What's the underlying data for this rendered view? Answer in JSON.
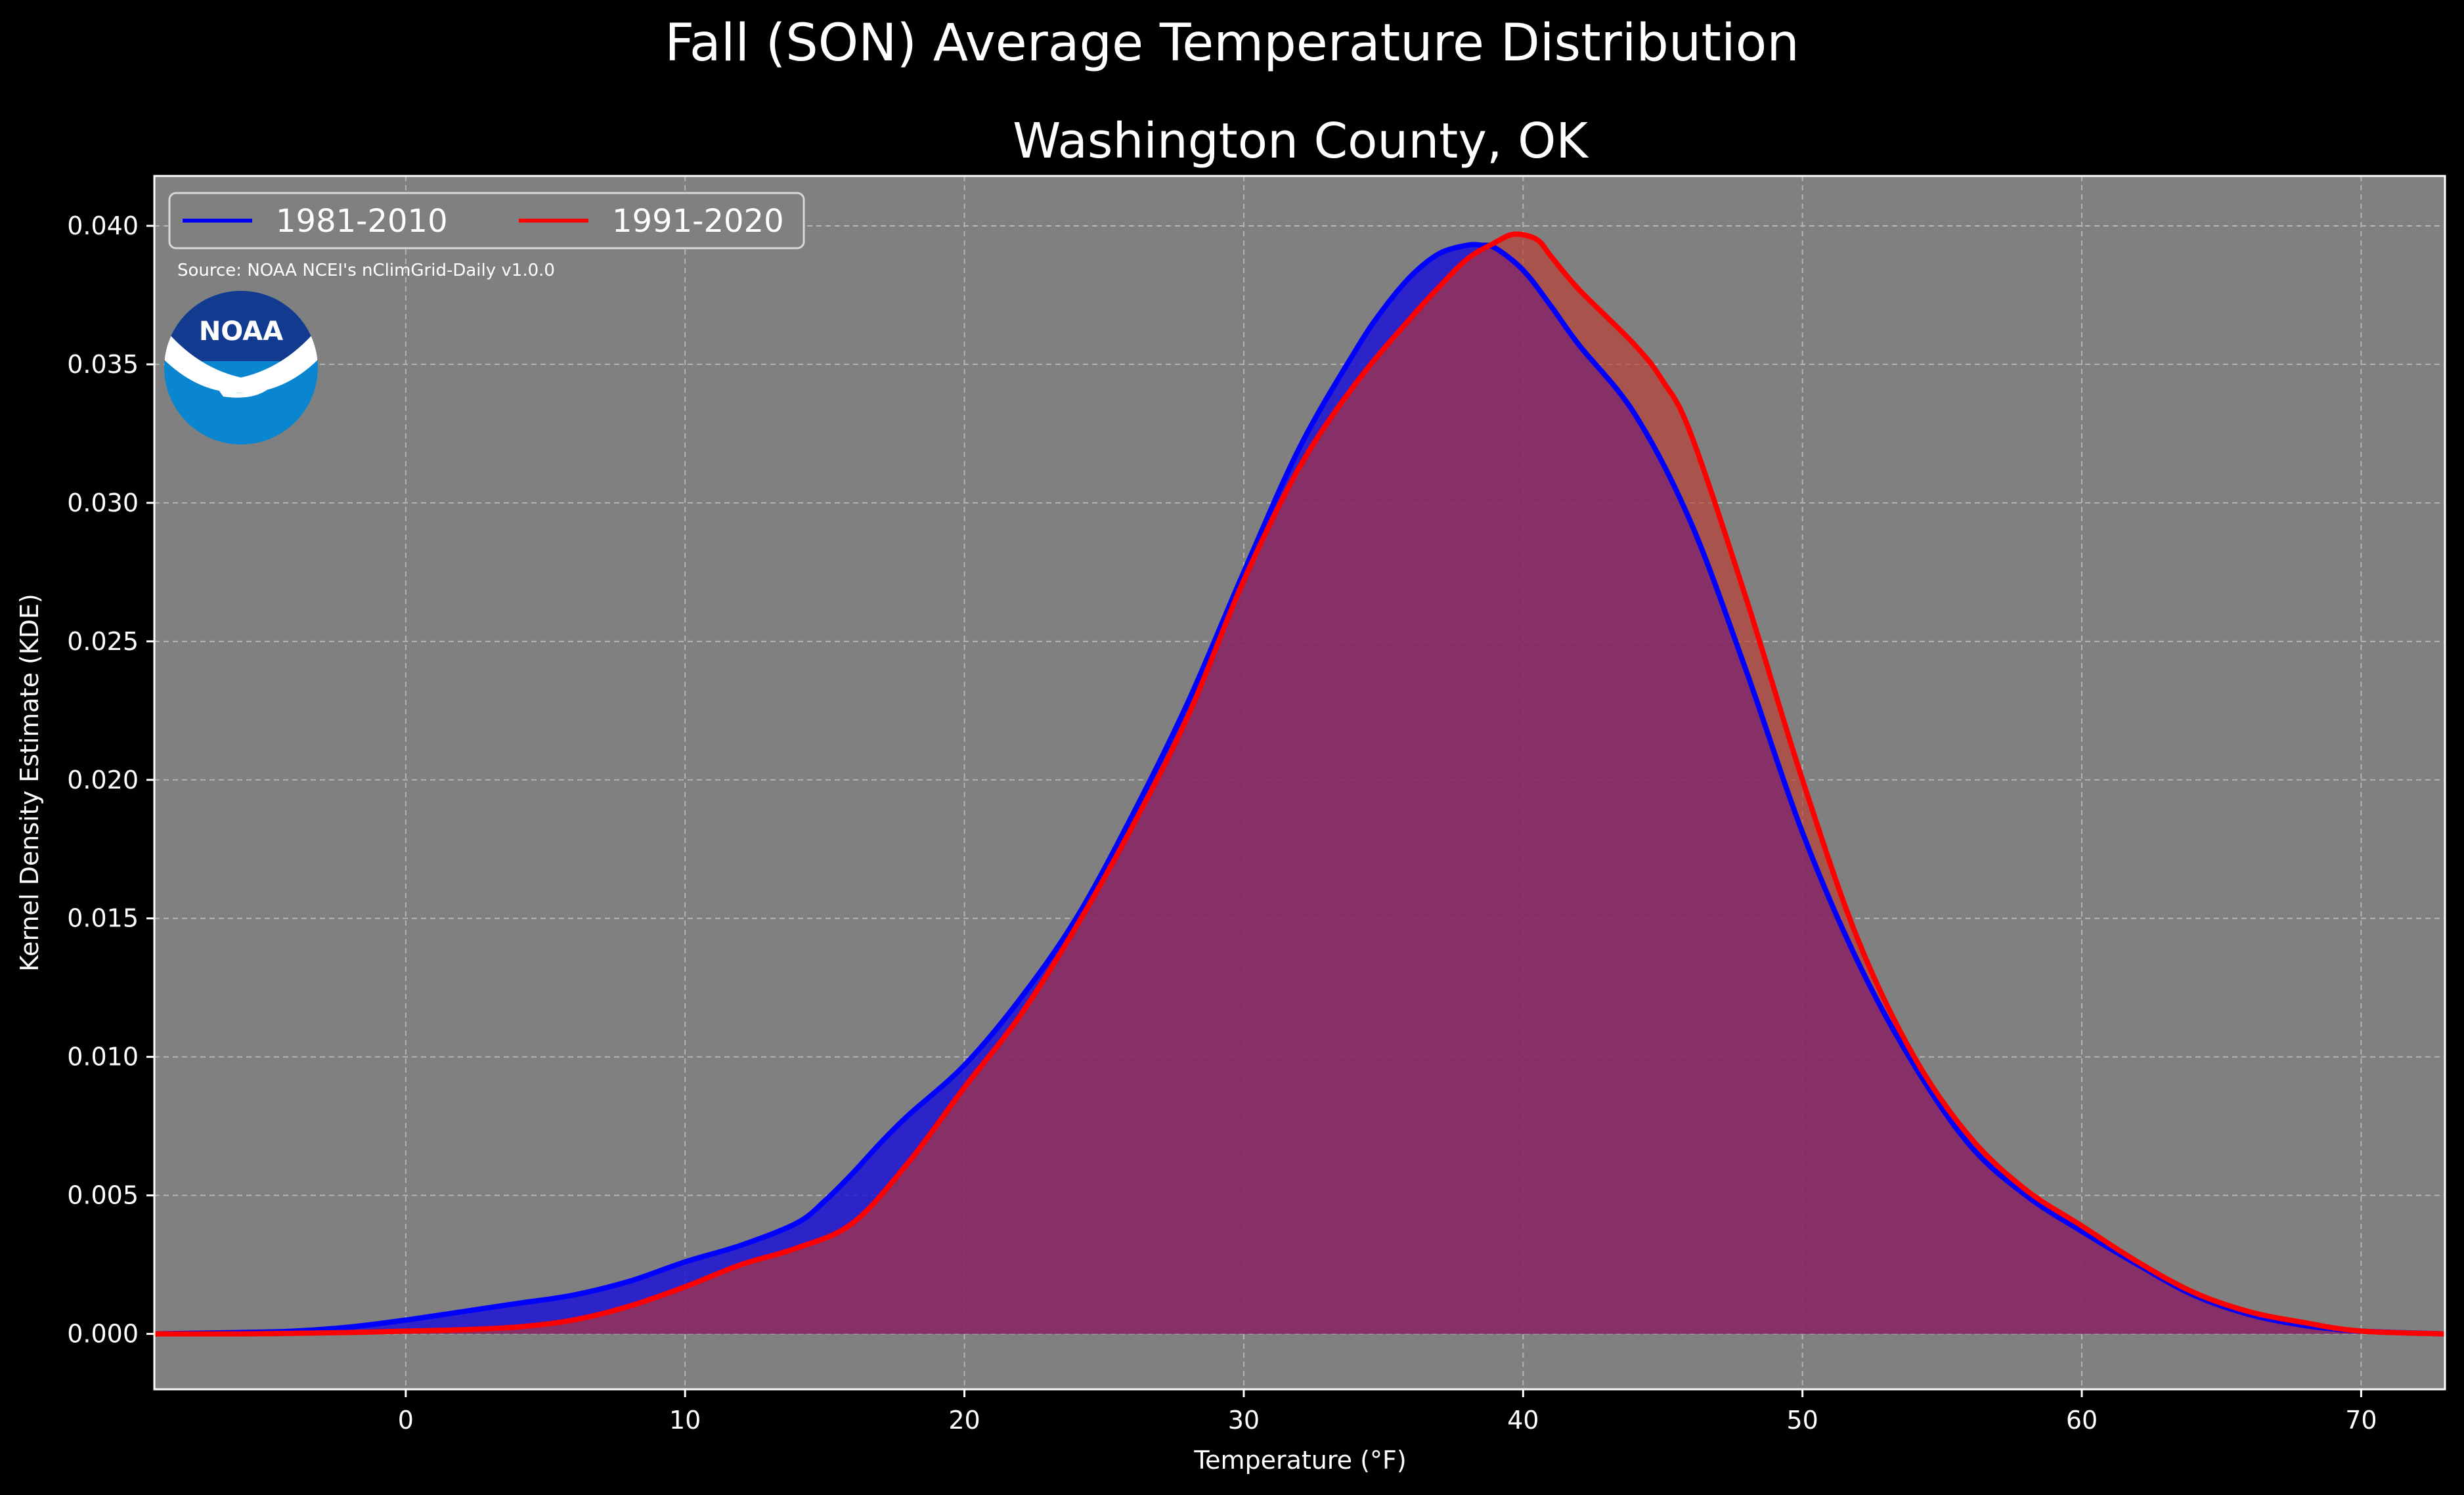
{
  "chart_data": {
    "type": "area",
    "suptitle": "Fall (SON) Average Temperature Distribution",
    "title": "Washington County, OK",
    "xlabel": "Temperature (°F)",
    "ylabel": "Kernel Density Estimate (KDE)",
    "xlim": [
      -9,
      73
    ],
    "ylim": [
      -0.002,
      0.0418
    ],
    "xticks": [
      0,
      10,
      20,
      30,
      40,
      50,
      60,
      70
    ],
    "yticks": [
      0.0,
      0.005,
      0.01,
      0.015,
      0.02,
      0.025,
      0.03,
      0.035,
      0.04
    ],
    "ytick_labels": [
      "0.000",
      "0.005",
      "0.010",
      "0.015",
      "0.020",
      "0.025",
      "0.030",
      "0.035",
      "0.040"
    ],
    "grid": true,
    "legend": "top-left",
    "background_color": "#808080",
    "figure_color": "#000000",
    "source": "Source: NOAA NCEI's nClimGrid-Daily v1.0.0",
    "logo_text": "NOAA",
    "series": [
      {
        "name": "1981-2010",
        "color": "#0000ff",
        "fill_color": "#1a0fd8",
        "x": [
          -9,
          -6,
          -4,
          -2,
          0,
          2,
          4,
          6,
          8,
          10,
          12,
          14,
          15,
          16,
          17,
          18,
          20,
          22,
          24,
          26,
          28,
          30,
          32,
          34,
          35,
          36,
          37,
          38,
          38.5,
          39,
          40,
          41,
          42,
          44,
          46,
          48,
          50,
          52,
          54,
          56,
          58,
          60,
          62,
          64,
          66,
          68,
          70,
          73
        ],
        "y": [
          0.0,
          5e-05,
          0.0001,
          0.00025,
          0.0005,
          0.0008,
          0.0011,
          0.0014,
          0.0019,
          0.0026,
          0.0032,
          0.004,
          0.0048,
          0.0058,
          0.0069,
          0.0079,
          0.0097,
          0.0121,
          0.015,
          0.0187,
          0.0228,
          0.0275,
          0.032,
          0.0355,
          0.037,
          0.0382,
          0.039,
          0.0393,
          0.0393,
          0.0392,
          0.0384,
          0.0371,
          0.0357,
          0.0332,
          0.0293,
          0.0239,
          0.0181,
          0.0134,
          0.0097,
          0.0068,
          0.005,
          0.0037,
          0.0025,
          0.0014,
          0.0007,
          0.0003,
          0.0001,
          0.0
        ]
      },
      {
        "name": "1991-2020",
        "color": "#ff0000",
        "fill_color": "#c0392b",
        "x": [
          -9,
          -6,
          -4,
          -2,
          0,
          2,
          4,
          6,
          8,
          10,
          12,
          14,
          16,
          18,
          20,
          22,
          24,
          26,
          28,
          30,
          32,
          34,
          36,
          37,
          38,
          39,
          39.7,
          40.5,
          41,
          42,
          44,
          45,
          46,
          48,
          50,
          52,
          54,
          56,
          58,
          60,
          62,
          64,
          66,
          68,
          70,
          73
        ],
        "y": [
          0.0,
          0.0,
          2e-05,
          5e-05,
          0.0001,
          0.00015,
          0.00025,
          0.0005,
          0.001,
          0.0017,
          0.0025,
          0.0031,
          0.004,
          0.0062,
          0.0089,
          0.0115,
          0.0147,
          0.0183,
          0.0223,
          0.0272,
          0.0313,
          0.0343,
          0.0367,
          0.0378,
          0.0388,
          0.0394,
          0.0397,
          0.0395,
          0.0389,
          0.0377,
          0.0357,
          0.0344,
          0.0325,
          0.0265,
          0.02,
          0.0142,
          0.01,
          0.0071,
          0.0052,
          0.0039,
          0.0026,
          0.0015,
          0.0008,
          0.0004,
          0.0001,
          0.0
        ]
      }
    ]
  }
}
